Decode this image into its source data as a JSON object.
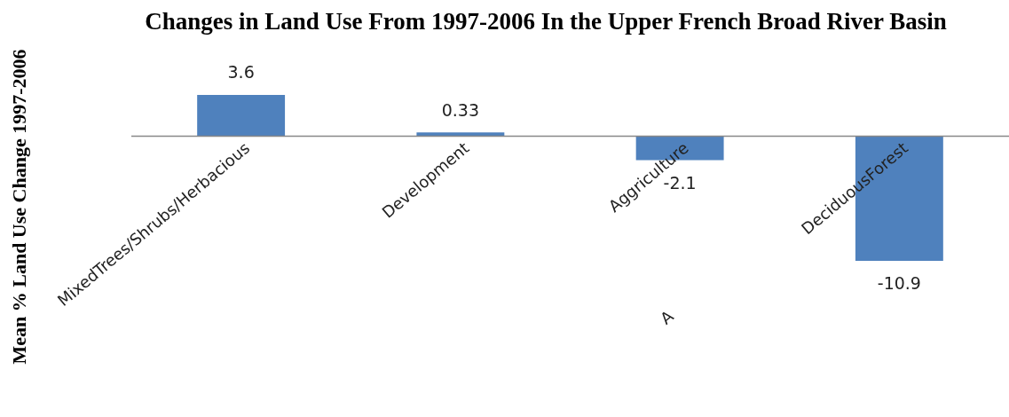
{
  "chart_data": {
    "type": "bar",
    "title": "Changes in Land Use From 1997-2006 In the Upper French Broad River Basin",
    "xlabel": "A",
    "ylabel": "Mean % Land Use Change 1997-2006",
    "categories": [
      "MixedTrees/Shrubs/Herbacious",
      "Development",
      "Aggriculture",
      "DeciduousForest"
    ],
    "values": [
      3.6,
      0.33,
      -2.1,
      -10.9
    ],
    "color": "#4f81bd",
    "data_labels": true
  }
}
